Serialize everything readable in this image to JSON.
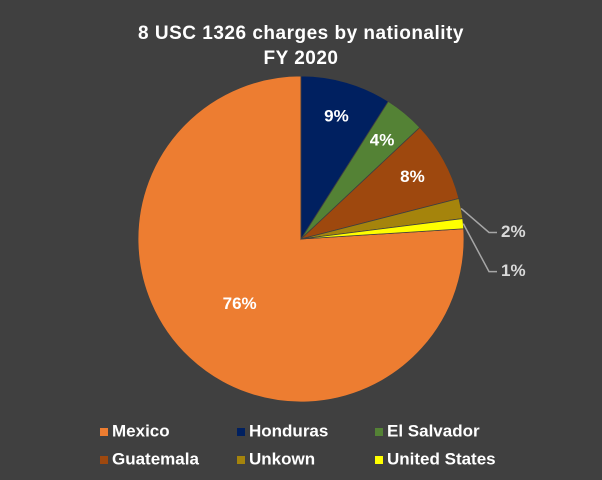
{
  "chart_data": {
    "type": "pie",
    "title": "8 USC 1326 charges by nationality",
    "subtitle": "FY 2020",
    "slices": [
      {
        "name": "Mexico",
        "value": 76,
        "label": "76%",
        "color": "#ed7d31"
      },
      {
        "name": "Honduras",
        "value": 9,
        "label": "9%",
        "color": "#002060"
      },
      {
        "name": "El Salvador",
        "value": 4,
        "label": "4%",
        "color": "#548235"
      },
      {
        "name": "Guatemala",
        "value": 8,
        "label": "8%",
        "color": "#9e480e"
      },
      {
        "name": "Unkown",
        "value": 2,
        "label": "2%",
        "color": "#a5840c"
      },
      {
        "name": "United States",
        "value": 1,
        "label": "1%",
        "color": "#ffff00"
      }
    ],
    "legend_position": "bottom"
  }
}
